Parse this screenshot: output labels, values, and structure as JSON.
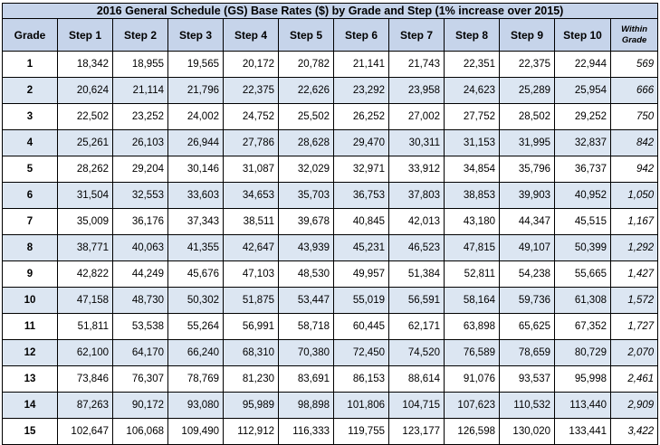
{
  "title": "2016 General Schedule (GS) Base Rates ($) by Grade and Step (1% increase over 2015)",
  "headers": [
    "Grade",
    "Step 1",
    "Step 2",
    "Step 3",
    "Step 4",
    "Step 5",
    "Step 6",
    "Step 7",
    "Step 8",
    "Step 9",
    "Step 10",
    "Within Grade"
  ],
  "rows": [
    {
      "grade": "1",
      "steps": [
        "18,342",
        "18,955",
        "19,565",
        "20,172",
        "20,782",
        "21,141",
        "21,743",
        "22,351",
        "22,375",
        "22,944"
      ],
      "within": "569"
    },
    {
      "grade": "2",
      "steps": [
        "20,624",
        "21,114",
        "21,796",
        "22,375",
        "22,626",
        "23,292",
        "23,958",
        "24,623",
        "25,289",
        "25,954"
      ],
      "within": "666"
    },
    {
      "grade": "3",
      "steps": [
        "22,502",
        "23,252",
        "24,002",
        "24,752",
        "25,502",
        "26,252",
        "27,002",
        "27,752",
        "28,502",
        "29,252"
      ],
      "within": "750"
    },
    {
      "grade": "4",
      "steps": [
        "25,261",
        "26,103",
        "26,944",
        "27,786",
        "28,628",
        "29,470",
        "30,311",
        "31,153",
        "31,995",
        "32,837"
      ],
      "within": "842"
    },
    {
      "grade": "5",
      "steps": [
        "28,262",
        "29,204",
        "30,146",
        "31,087",
        "32,029",
        "32,971",
        "33,912",
        "34,854",
        "35,796",
        "36,737"
      ],
      "within": "942"
    },
    {
      "grade": "6",
      "steps": [
        "31,504",
        "32,553",
        "33,603",
        "34,653",
        "35,703",
        "36,753",
        "37,803",
        "38,853",
        "39,903",
        "40,952"
      ],
      "within": "1,050"
    },
    {
      "grade": "7",
      "steps": [
        "35,009",
        "36,176",
        "37,343",
        "38,511",
        "39,678",
        "40,845",
        "42,013",
        "43,180",
        "44,347",
        "45,515"
      ],
      "within": "1,167"
    },
    {
      "grade": "8",
      "steps": [
        "38,771",
        "40,063",
        "41,355",
        "42,647",
        "43,939",
        "45,231",
        "46,523",
        "47,815",
        "49,107",
        "50,399"
      ],
      "within": "1,292"
    },
    {
      "grade": "9",
      "steps": [
        "42,822",
        "44,249",
        "45,676",
        "47,103",
        "48,530",
        "49,957",
        "51,384",
        "52,811",
        "54,238",
        "55,665"
      ],
      "within": "1,427"
    },
    {
      "grade": "10",
      "steps": [
        "47,158",
        "48,730",
        "50,302",
        "51,875",
        "53,447",
        "55,019",
        "56,591",
        "58,164",
        "59,736",
        "61,308"
      ],
      "within": "1,572"
    },
    {
      "grade": "11",
      "steps": [
        "51,811",
        "53,538",
        "55,264",
        "56,991",
        "58,718",
        "60,445",
        "62,171",
        "63,898",
        "65,625",
        "67,352"
      ],
      "within": "1,727"
    },
    {
      "grade": "12",
      "steps": [
        "62,100",
        "64,170",
        "66,240",
        "68,310",
        "70,380",
        "72,450",
        "74,520",
        "76,589",
        "78,659",
        "80,729"
      ],
      "within": "2,070"
    },
    {
      "grade": "13",
      "steps": [
        "73,846",
        "76,307",
        "78,769",
        "81,230",
        "83,691",
        "86,153",
        "88,614",
        "91,076",
        "93,537",
        "95,998"
      ],
      "within": "2,461"
    },
    {
      "grade": "14",
      "steps": [
        "87,263",
        "90,172",
        "93,080",
        "95,989",
        "98,898",
        "101,806",
        "104,715",
        "107,623",
        "110,532",
        "113,440"
      ],
      "within": "2,909"
    },
    {
      "grade": "15",
      "steps": [
        "102,647",
        "106,068",
        "109,490",
        "112,912",
        "116,333",
        "119,755",
        "123,177",
        "126,598",
        "130,020",
        "133,441"
      ],
      "within": "3,422"
    }
  ],
  "colors": {
    "header_bg": "#c6d4ea",
    "band_bg": "#dce6f2",
    "border": "#000000"
  }
}
